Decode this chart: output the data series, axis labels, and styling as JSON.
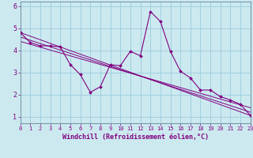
{
  "xlabel": "Windchill (Refroidissement éolien,°C)",
  "bg_color": "#cce9f0",
  "line_color": "#800080",
  "grid_color": "#99ccdd",
  "spine_color": "#7799aa",
  "xlim": [
    0,
    23
  ],
  "ylim": [
    0.7,
    6.2
  ],
  "xticks": [
    0,
    1,
    2,
    3,
    4,
    5,
    6,
    7,
    8,
    9,
    10,
    11,
    12,
    13,
    14,
    15,
    16,
    17,
    18,
    19,
    20,
    21,
    22,
    23
  ],
  "yticks": [
    1,
    2,
    3,
    4,
    5,
    6
  ],
  "data_line": {
    "x": [
      0,
      1,
      2,
      3,
      4,
      5,
      6,
      7,
      8,
      9,
      10,
      11,
      12,
      13,
      14,
      15,
      16,
      17,
      18,
      19,
      20,
      21,
      22,
      23
    ],
    "y": [
      4.8,
      4.35,
      4.2,
      4.2,
      4.15,
      3.35,
      2.9,
      2.1,
      2.35,
      3.35,
      3.3,
      3.95,
      3.75,
      5.75,
      5.3,
      3.95,
      3.05,
      2.75,
      2.2,
      2.2,
      1.9,
      1.75,
      1.55,
      1.05
    ]
  },
  "trend_lines": [
    {
      "x": [
        0,
        23
      ],
      "y": [
        4.8,
        1.05
      ]
    },
    {
      "x": [
        0,
        23
      ],
      "y": [
        4.6,
        1.2
      ]
    },
    {
      "x": [
        0,
        23
      ],
      "y": [
        4.4,
        1.4
      ]
    }
  ]
}
